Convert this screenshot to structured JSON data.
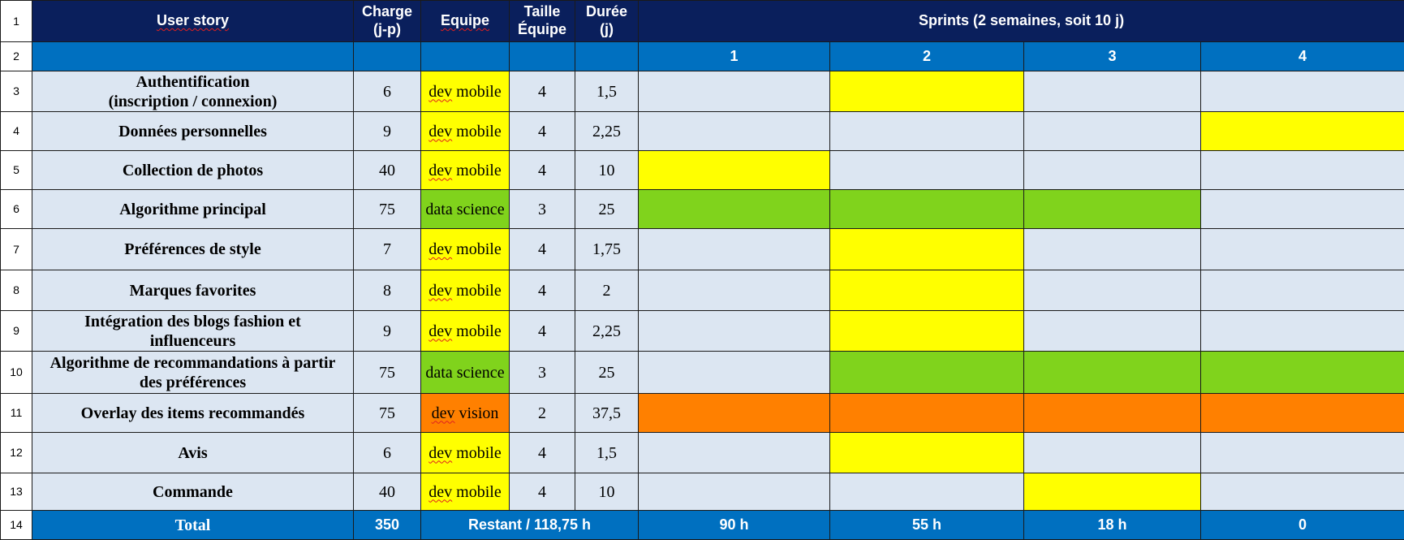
{
  "colors": {
    "header_dark": "#0a1f5c",
    "header_blue": "#0070c0",
    "cell_light": "#dce6f2",
    "dev_mobile": "#ffff00",
    "data_science": "#80d31c",
    "dev_vision": "#ff8000"
  },
  "row_numbers": [
    "1",
    "2",
    "3",
    "4",
    "5",
    "6",
    "7",
    "8",
    "9",
    "10",
    "11",
    "12",
    "13",
    "14"
  ],
  "header": {
    "user_story": "User story",
    "charge_line1": "Charge",
    "charge_line2": "(j-p)",
    "equipe": "Equipe",
    "taille_line1": "Taille",
    "taille_line2": "Équipe",
    "duree_line1": "Durée",
    "duree_line2": "(j)",
    "sprints": "Sprints (2 semaines, soit 10 j)"
  },
  "sprint_numbers": [
    "1",
    "2",
    "3",
    "4"
  ],
  "rows": [
    {
      "story": "Authentification\n(inscription / connexion)",
      "charge": "6",
      "team_a": "dev",
      "team_b": " mobile",
      "team_type": "dev_mobile",
      "size": "4",
      "duration": "1,5",
      "sprints": [
        false,
        true,
        false,
        false
      ]
    },
    {
      "story": "Données personnelles",
      "charge": "9",
      "team_a": "dev",
      "team_b": " mobile",
      "team_type": "dev_mobile",
      "size": "4",
      "duration": "2,25",
      "sprints": [
        false,
        false,
        false,
        true
      ]
    },
    {
      "story": "Collection de photos",
      "charge": "40",
      "team_a": "dev",
      "team_b": " mobile",
      "team_type": "dev_mobile",
      "size": "4",
      "duration": "10",
      "sprints": [
        true,
        false,
        false,
        false
      ]
    },
    {
      "story": "Algorithme principal",
      "charge": "75",
      "team_a": "",
      "team_b": "data science",
      "team_type": "data_science",
      "size": "3",
      "duration": "25",
      "sprints": [
        true,
        true,
        true,
        false
      ]
    },
    {
      "story": "Préférences de style",
      "charge": "7",
      "team_a": "dev",
      "team_b": " mobile",
      "team_type": "dev_mobile",
      "size": "4",
      "duration": "1,75",
      "sprints": [
        false,
        true,
        false,
        false
      ]
    },
    {
      "story": "Marques favorites",
      "charge": "8",
      "team_a": "dev",
      "team_b": " mobile",
      "team_type": "dev_mobile",
      "size": "4",
      "duration": "2",
      "sprints": [
        false,
        true,
        false,
        false
      ]
    },
    {
      "story": "Intégration des blogs fashion et\ninfluenceurs",
      "charge": "9",
      "team_a": "dev",
      "team_b": " mobile",
      "team_type": "dev_mobile",
      "size": "4",
      "duration": "2,25",
      "sprints": [
        false,
        true,
        false,
        false
      ]
    },
    {
      "story": "Algorithme de recommandations à partir\ndes préférences",
      "charge": "75",
      "team_a": "",
      "team_b": "data science",
      "team_type": "data_science",
      "size": "3",
      "duration": "25",
      "sprints": [
        false,
        true,
        true,
        true
      ]
    },
    {
      "story": "Overlay des items recommandés",
      "charge": "75",
      "team_a": "dev",
      "team_b": " vision",
      "team_type": "dev_vision",
      "size": "2",
      "duration": "37,5",
      "sprints": [
        true,
        true,
        true,
        true
      ]
    },
    {
      "story": "Avis",
      "charge": "6",
      "team_a": "dev",
      "team_b": " mobile",
      "team_type": "dev_mobile",
      "size": "4",
      "duration": "1,5",
      "sprints": [
        false,
        true,
        false,
        false
      ]
    },
    {
      "story": "Commande",
      "charge": "40",
      "team_a": "dev",
      "team_b": " mobile",
      "team_type": "dev_mobile",
      "size": "4",
      "duration": "10",
      "sprints": [
        false,
        false,
        true,
        false
      ]
    }
  ],
  "total": {
    "label": "Total",
    "charge": "350",
    "restant": "Restant / 118,75 h",
    "sprints": [
      "90 h",
      "55 h",
      "18 h",
      "0"
    ]
  }
}
